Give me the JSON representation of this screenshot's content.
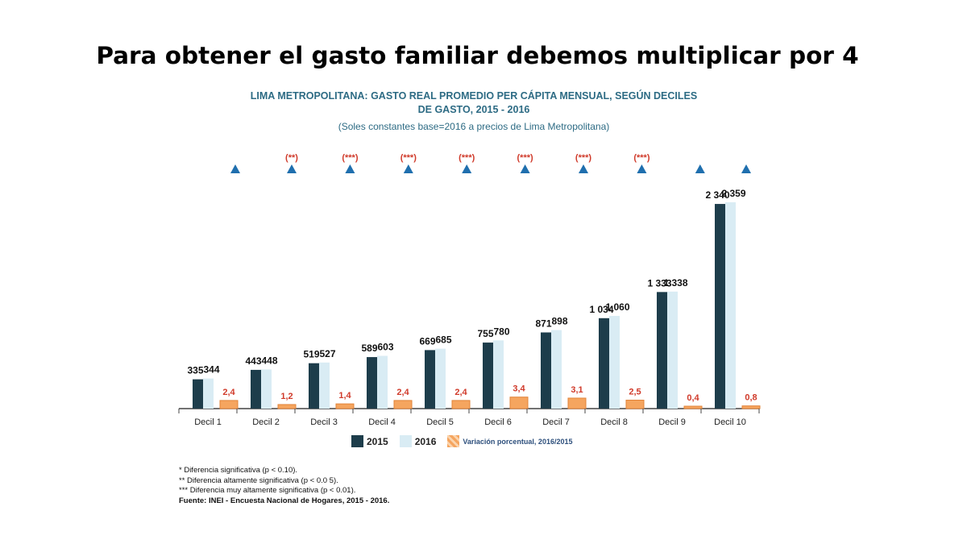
{
  "slide": {
    "title": "Para obtener el gasto familiar debemos multiplicar por 4"
  },
  "chart_data": {
    "type": "bar",
    "title_line1": "LIMA METROPOLITANA: GASTO REAL PROMEDIO PER CÁPITA MENSUAL, SEGÚN DECILES",
    "title_line2": "DE GASTO, 2015 - 2016",
    "subtitle": "(Soles constantes base=2016 a precios de Lima Metropolitana)",
    "categories": [
      "Decil 1",
      "Decil 2",
      "Decil 3",
      "Decil 4",
      "Decil 5",
      "Decil 6",
      "Decil 7",
      "Decil 8",
      "Decil 9",
      "Decil 10"
    ],
    "series": [
      {
        "name": "2015",
        "color": "#1d3d4b",
        "values": [
          335,
          443,
          519,
          589,
          669,
          755,
          871,
          1034,
          1333,
          2340
        ],
        "labels": [
          "335",
          "443",
          "519",
          "589",
          "669",
          "755",
          "871",
          "1 034",
          "1 333",
          "2 340"
        ]
      },
      {
        "name": "2016",
        "color": "#d9ecf4",
        "values": [
          344,
          448,
          527,
          603,
          685,
          780,
          898,
          1060,
          1338,
          2359
        ],
        "labels": [
          "344",
          "448",
          "527",
          "603",
          "685",
          "780",
          "898",
          "1 060",
          "1 338",
          "2 359"
        ]
      },
      {
        "name": "Variación porcentual, 2016/2015",
        "color": "#f5a55f",
        "values": [
          2.4,
          1.2,
          1.4,
          2.4,
          2.4,
          3.4,
          3.1,
          2.5,
          0.4,
          0.8
        ],
        "labels": [
          "2,4",
          "1,2",
          "1,4",
          "2,4",
          "2,4",
          "3,4",
          "3,1",
          "2,5",
          "0,4",
          "0,8"
        ]
      }
    ],
    "significance": [
      "",
      "(**)",
      "(***)",
      "(***)",
      "(***)",
      "(***)",
      "(***)",
      "(***)",
      "",
      ""
    ],
    "marker_color": "#1f6fae",
    "ylim": [
      0,
      2400
    ],
    "legend_placement": "bottom"
  },
  "notes": {
    "line1": "* Diferencia significativa (p <  0.10).",
    "line2": "** Diferencia altamente significativa (p < 0.0 5).",
    "line3": "*** Diferencia muy altamente significativa (p < 0.01).",
    "source": "Fuente: INEI - Encuesta Nacional de Hogares, 2015 - 2016."
  }
}
